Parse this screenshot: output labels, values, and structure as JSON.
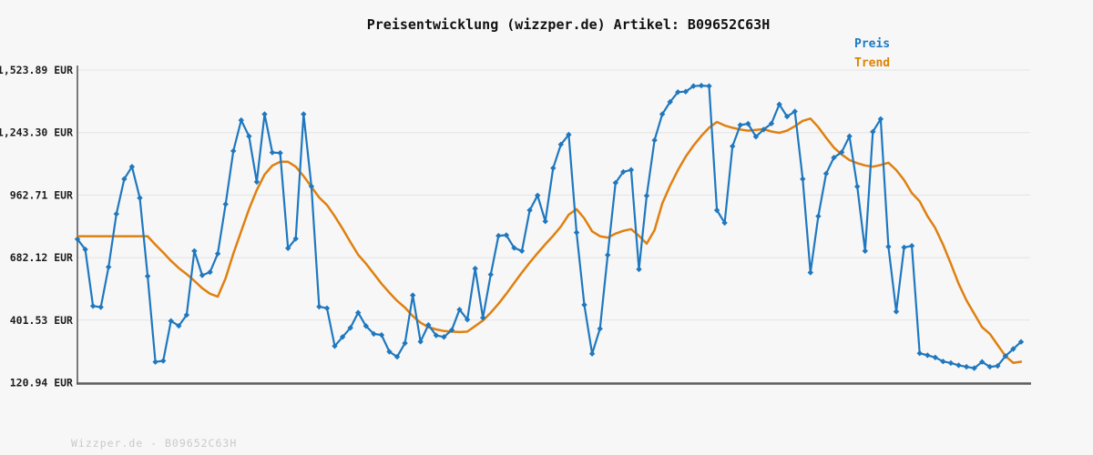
{
  "title": "Preisentwicklung (wizzper.de) Artikel: B09652C63H",
  "watermark": "Wizzper.de - B09652C63H",
  "legend": {
    "position": "top-right",
    "items": [
      {
        "label": "Preis",
        "color": "#1f78bf"
      },
      {
        "label": "Trend",
        "color": "#df8010"
      }
    ]
  },
  "chart_data": {
    "type": "line",
    "title": "Preisentwicklung (wizzper.de) Artikel: B09652C63H",
    "xlabel": "",
    "ylabel": "EUR",
    "x_axis": {
      "tick_labels_visible": false,
      "n_points": 122
    },
    "ylim": [
      120.94,
      1523.89
    ],
    "grid": true,
    "grid_color": "#e3e3e3",
    "background": "#f7f7f7",
    "axis_color_left": "#7a7a7a",
    "axis_color_bottom": "#5c5c5c",
    "y_ticks": [
      {
        "value": 120.94,
        "label": "120.94 EUR"
      },
      {
        "value": 401.53,
        "label": "401.53 EUR"
      },
      {
        "value": 682.12,
        "label": "682.12 EUR"
      },
      {
        "value": 962.71,
        "label": "962.71 EUR"
      },
      {
        "value": 1243.3,
        "label": "1,243.30 EUR"
      },
      {
        "value": 1523.89,
        "label": "1,523.89 EUR"
      }
    ],
    "series": [
      {
        "name": "Preis",
        "color": "#1f78bf",
        "marker": "diamond",
        "line_width": 2.2,
        "values": [
          765,
          719,
          465,
          460,
          640,
          878,
          1035,
          1090,
          950,
          599,
          214,
          219,
          398,
          376,
          425,
          712,
          603,
          617,
          700,
          922,
          1161,
          1299,
          1227,
          1022,
          1326,
          1154,
          1152,
          724,
          767,
          1326,
          1002,
          462,
          455,
          285,
          326,
          367,
          435,
          375,
          340,
          335,
          260,
          237,
          298,
          513,
          305,
          380,
          333,
          326,
          357,
          449,
          404,
          633,
          412,
          606,
          780,
          783,
          726,
          712,
          895,
          961,
          845,
          1084,
          1190,
          1234,
          795,
          470,
          251,
          363,
          694,
          1018,
          1067,
          1076,
          630,
          960,
          1209,
          1326,
          1381,
          1425,
          1427,
          1452,
          1454,
          1452,
          895,
          838,
          1182,
          1277,
          1283,
          1225,
          1257,
          1284,
          1370,
          1315,
          1338,
          1035,
          615,
          868,
          1059,
          1131,
          1155,
          1227,
          1001,
          712,
          1247,
          1304,
          731,
          440,
          728,
          735,
          253,
          244,
          234,
          216,
          209,
          199,
          192,
          186,
          214,
          192,
          196,
          240,
          272,
          304
        ]
      },
      {
        "name": "Trend",
        "color": "#df8010",
        "marker": "none",
        "line_width": 2.5,
        "values": [
          778,
          778,
          778,
          778,
          778,
          778,
          778,
          778,
          778,
          778,
          740,
          705,
          668,
          635,
          608,
          578,
          545,
          520,
          507,
          590,
          700,
          800,
          900,
          985,
          1055,
          1095,
          1112,
          1112,
          1090,
          1048,
          1000,
          952,
          918,
          868,
          812,
          752,
          695,
          655,
          610,
          565,
          525,
          488,
          458,
          420,
          390,
          370,
          360,
          353,
          350,
          348,
          350,
          375,
          400,
          435,
          475,
          520,
          568,
          615,
          660,
          702,
          742,
          780,
          822,
          875,
          900,
          858,
          800,
          778,
          772,
          790,
          802,
          810,
          780,
          745,
          805,
          925,
          1005,
          1075,
          1135,
          1185,
          1228,
          1265,
          1291,
          1275,
          1265,
          1257,
          1252,
          1255,
          1259,
          1248,
          1242,
          1252,
          1272,
          1296,
          1306,
          1268,
          1220,
          1176,
          1145,
          1120,
          1106,
          1096,
          1090,
          1098,
          1108,
          1075,
          1030,
          972,
          935,
          868,
          815,
          740,
          655,
          565,
          490,
          430,
          370,
          340,
          290,
          240,
          210,
          215
        ]
      }
    ]
  }
}
